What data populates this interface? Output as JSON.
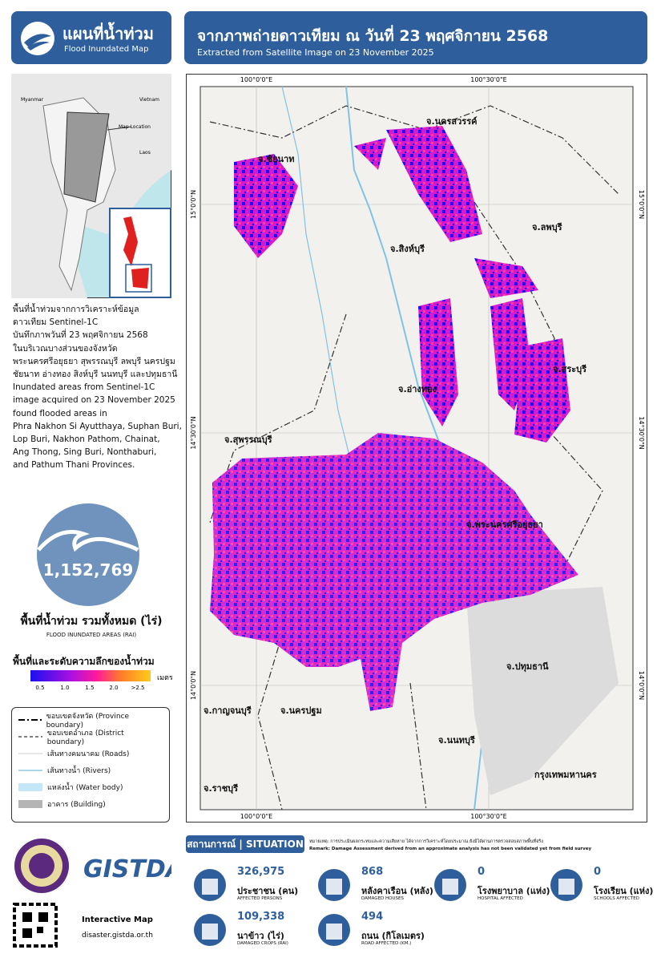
{
  "header": {
    "title_th": "แผนที่น้ำท่วม",
    "title_en": "Flood Inundated Map",
    "map_title": "จากภาพถ่ายดาวเทียม ณ วันที่ 23 พฤศจิกายน 2568",
    "map_subtitle": "Extracted from Satellite Image on 23 November 2025"
  },
  "inset": {
    "labels": [
      "Myanmar",
      "Vietnam",
      "Map Location",
      "Laos"
    ]
  },
  "description": [
    "พื้นที่น้ำท่วมจากการวิเคราะห์ข้อมูล",
    "ดาวเทียม Sentinel-1C",
    "บันทึกภาพวันที่ 23 พฤศจิกายน 2568",
    "ในบริเวณบางส่วนของจังหวัด",
    "พระนครศรีอยุธยา สุพรรณบุรี ลพบุรี นครปฐม",
    "ชัยนาท อ่างทอง สิงห์บุรี นนทบุรี และปทุมธานี",
    "Inundated areas from Sentinel-1C",
    "image acquired on 23 November 2025",
    "found flooded areas in",
    "Phra Nakhon Si Ayutthaya, Suphan Buri,",
    "Lop Buri, Nakhon Pathom, Chainat,",
    "Ang Thong, Sing Buri, Nonthaburi,",
    "and Pathum Thani Provinces."
  ],
  "total": {
    "value": "1,152,769",
    "label_th": "พื้นที่น้ำท่วม รวมทั้งหมด (ไร่)",
    "label_en": "FLOOD INUNDATED AREAS (RAI)"
  },
  "depth_legend": {
    "title": "พื้นที่และระดับความลึกของน้ำท่วม",
    "ticks": [
      "0.5",
      "1.0",
      "1.5",
      "2.0",
      ">2.5"
    ],
    "unit": "เมตร"
  },
  "legend": [
    "ขอบเขตจังหวัด (Province boundary)",
    "ขอบเขตอำเภอ (District boundary)",
    "เส้นทางคมนาคม (Roads)",
    "เส้นทางน้ำ (Rivers)",
    "แหล่งน้ำ (Water body)",
    "อาคาร (Building)"
  ],
  "map": {
    "lon": [
      "100°0'0\"E",
      "100°30'0\"E"
    ],
    "lat": [
      "15°0'0\"N",
      "14°30'0\"N",
      "14°0'0\"N"
    ],
    "provinces": [
      "จ.นครสวรรค์",
      "จ.ชัยนาท",
      "จ.ลพบุรี",
      "จ.สิงห์บุรี",
      "จ.สระบุรี",
      "จ.อ่างทอง",
      "จ.สุพรรณบุรี",
      "จ.พระนครศรีอยุธยา",
      "จ.ปทุมธานี",
      "จ.กาญจนบุรี",
      "จ.นครปฐม",
      "จ.นนทบุรี",
      "กรุงเทพมหานคร",
      "จ.ราชบุรี"
    ]
  },
  "situation": {
    "title": "สถานการณ์ | SITUATION",
    "remark_th": "หมายเหตุ: การประเมินผลกระทบและความเสียหาย ได้จากการวิเคราะห์โดยประมาณ ยังมิได้ผ่านการตรวจสอบสภาพพื้นที่จริง",
    "remark_en": "Remark: Damage Assessment derived from an approximate analysis has not been validated yet from field survey",
    "items": [
      {
        "value": "326,975",
        "label_th": "ประชาชน (คน)",
        "label_en": "AFFECTED PERSONS"
      },
      {
        "value": "868",
        "label_th": "หลังคาเรือน (หลัง)",
        "label_en": "DAMAGED HOUSES"
      },
      {
        "value": "0",
        "label_th": "โรงพยาบาล (แห่ง)",
        "label_en": "HOSPITAL AFFECTED"
      },
      {
        "value": "0",
        "label_th": "โรงเรียน (แห่ง)",
        "label_en": "SCHOOLS AFFECTED"
      },
      {
        "value": "109,338",
        "label_th": "นาข้าว (ไร่)",
        "label_en": "DAMAGED CROPS (RAI)"
      },
      {
        "value": "494",
        "label_th": "ถนน (กิโลเมตร)",
        "label_en": "ROAD AFFECTED (KM.)"
      }
    ]
  },
  "footer": {
    "brand": "GISTDA",
    "interactive": "Interactive Map",
    "url": "disaster.gistda.or.th"
  }
}
